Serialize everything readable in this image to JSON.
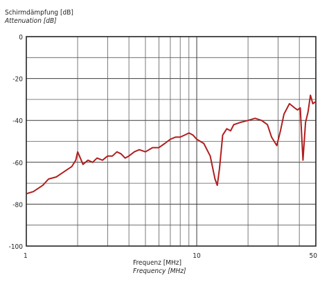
{
  "chart_data": {
    "type": "line",
    "title_de": "Schirmdämpfung [dB]",
    "title_en": "Attenuation [dB]",
    "xlabel_de": "Frequenz [MHz]",
    "xlabel_en": "Frequency [MHz]",
    "x_scale": "log",
    "xlim": [
      1,
      50
    ],
    "ylim": [
      -100,
      0
    ],
    "x_tick_labels": [
      "1",
      "10",
      "50"
    ],
    "y_tick_labels": [
      "0",
      "-20",
      "-40",
      "-60",
      "-80",
      "-100"
    ],
    "grid": true,
    "series": [
      {
        "color": "#b01e1e",
        "x": [
          1,
          1.1,
          1.25,
          1.35,
          1.5,
          1.7,
          1.85,
          1.95,
          2.0,
          2.05,
          2.15,
          2.3,
          2.45,
          2.6,
          2.8,
          3.0,
          3.2,
          3.4,
          3.6,
          3.8,
          4.0,
          4.3,
          4.6,
          5.0,
          5.5,
          6.0,
          6.5,
          7.0,
          7.5,
          8.0,
          8.5,
          9.0,
          9.5,
          10.0,
          11.0,
          12.0,
          12.8,
          13.2,
          13.6,
          14.2,
          15.0,
          15.8,
          16.5,
          18.0,
          20.0,
          22.0,
          24.0,
          26.0,
          27.5,
          29.5,
          31.0,
          32.5,
          35.0,
          37.5,
          39.0,
          40.5,
          42.0,
          43.5,
          45.0,
          46.5,
          48.0,
          50.0
        ],
        "y": [
          -75,
          -74,
          -71,
          -68,
          -67,
          -64,
          -62,
          -59,
          -55,
          -57,
          -61,
          -59,
          -60,
          -58,
          -59,
          -57,
          -57,
          -55,
          -56,
          -58,
          -57,
          -55,
          -54,
          -55,
          -53,
          -53,
          -51,
          -49,
          -48,
          -48,
          -47,
          -46,
          -47,
          -49,
          -51,
          -57,
          -68,
          -71,
          -63,
          -47,
          -44,
          -45,
          -42,
          -41,
          -40,
          -39,
          -40,
          -42,
          -48,
          -52,
          -45,
          -37,
          -32,
          -34,
          -35,
          -34,
          -59,
          -41,
          -36,
          -28,
          -32,
          -31
        ]
      }
    ]
  }
}
